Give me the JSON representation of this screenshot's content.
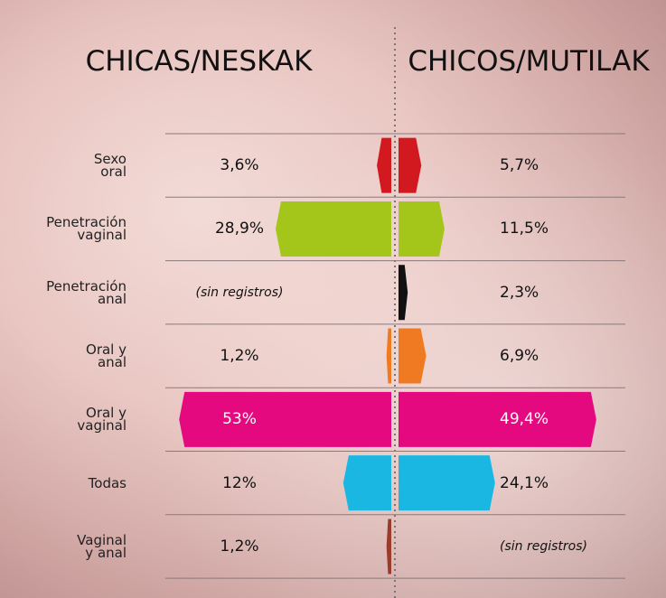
{
  "chart_data": {
    "type": "butterfly",
    "categories": [
      "Sexo\noral",
      "Penetración\nvaginal",
      "Penetración\nanal",
      "Oral y\nanal",
      "Oral y\nvaginal",
      "Todas",
      "Vaginal\ny anal"
    ],
    "colors": [
      "#d2191f",
      "#a4c61a",
      "#111111",
      "#f07a22",
      "#e5097f",
      "#1bb7e3",
      "#9a3b2c"
    ],
    "series": [
      {
        "name": "CHICAS/NESKAK",
        "values": [
          3.6,
          28.9,
          null,
          1.2,
          53,
          12,
          1.2
        ],
        "value_labels": [
          "3,6%",
          "28,9%",
          "(sin registros)",
          "1,2%",
          "53%",
          "12%",
          "1,2%"
        ]
      },
      {
        "name": "CHICOS/MUTILAK",
        "values": [
          5.7,
          11.5,
          2.3,
          6.9,
          49.4,
          24.1,
          null
        ],
        "value_labels": [
          "5,7%",
          "11,5%",
          "2,3%",
          "6,9%",
          "49,4%",
          "24,1%",
          "(sin registros)"
        ]
      }
    ]
  }
}
